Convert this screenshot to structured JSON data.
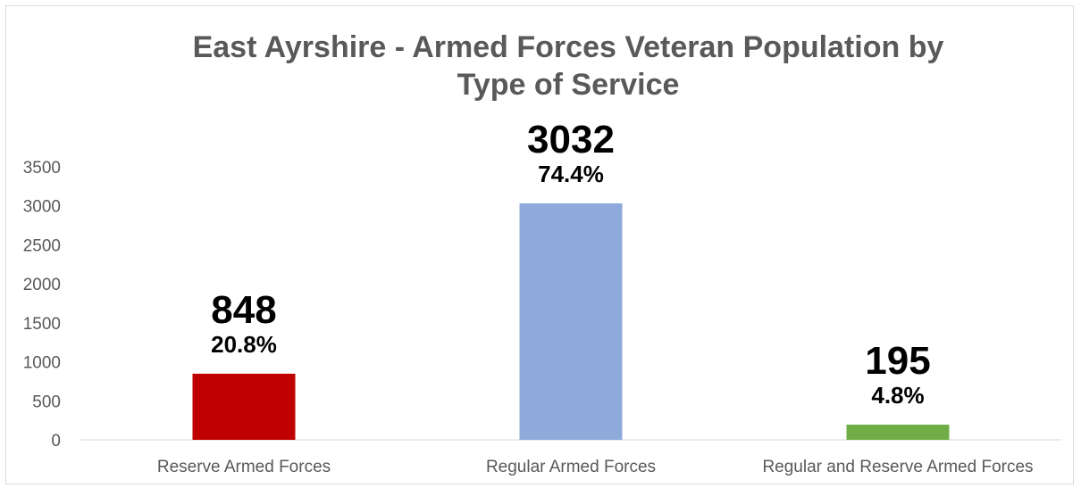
{
  "chart_data": {
    "type": "bar",
    "title_line1": "East Ayrshire - Armed Forces Veteran Population by",
    "title_line2": "Type of Service",
    "title": "East Ayrshire - Armed Forces Veteran Population by Type of Service",
    "categories": [
      "Reserve Armed Forces",
      "Regular Armed Forces",
      "Regular and Reserve Armed Forces"
    ],
    "values": [
      848,
      3032,
      195
    ],
    "value_labels": [
      "848",
      "3032",
      "195"
    ],
    "percent_labels": [
      "20.8%",
      "74.4%",
      "4.8%"
    ],
    "colors": [
      "#c00000",
      "#8eaadb",
      "#70ad47"
    ],
    "ylim": [
      0,
      3500
    ],
    "yticks": [
      "0",
      "500",
      "1000",
      "1500",
      "2000",
      "2500",
      "3000",
      "3500"
    ],
    "grid": false,
    "legend": "none"
  }
}
